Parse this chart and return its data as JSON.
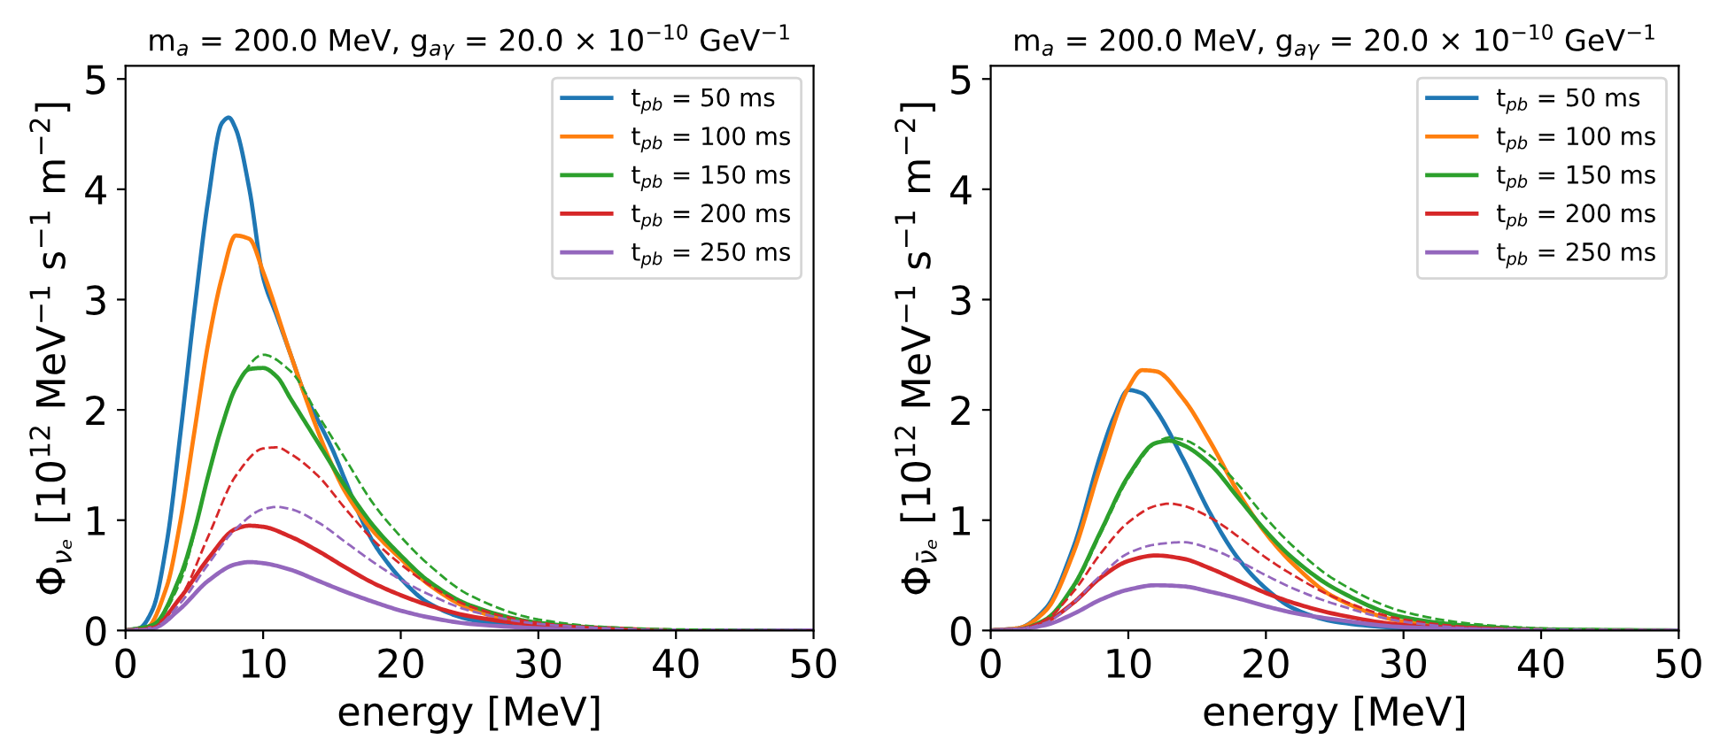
{
  "chart_data": [
    {
      "type": "line",
      "title": "m$_{a}$ = 200.0 MeV, g$_{aγ}$ = 20.0 × 10$^{−10}$ GeV$^{−1}$",
      "xlabel": "energy [MeV]",
      "ylabel": "Φ$_{νₑ}$ [10$^{12}$ MeV$^{−1}$ s$^{−1}$ m$^{−2}$]",
      "xlim": [
        0,
        50
      ],
      "ylim": [
        0,
        5.12
      ],
      "xticks": [
        0,
        10,
        20,
        30,
        40,
        50
      ],
      "yticks": [
        0,
        1,
        2,
        3,
        4,
        5
      ],
      "legend": "top right",
      "grid": false,
      "marker": "none",
      "series": [
        {
          "name": "t$_{pb}$ = 50 ms",
          "color": "#1f77b4",
          "line_style": "solid",
          "x": [
            0,
            1,
            2,
            3,
            4,
            5,
            6,
            7,
            7.5,
            8,
            9,
            10,
            11,
            12,
            13,
            14,
            15,
            16,
            17,
            18,
            19,
            20,
            22,
            25,
            30,
            35,
            50
          ],
          "values": [
            0,
            0.02,
            0.2,
            0.8,
            1.8,
            2.9,
            3.9,
            4.6,
            4.65,
            4.55,
            4.0,
            3.2,
            2.85,
            2.5,
            2.15,
            1.9,
            1.65,
            1.35,
            1.05,
            0.8,
            0.62,
            0.47,
            0.25,
            0.1,
            0.02,
            0,
            0
          ]
        },
        {
          "name": "t$_{pb}$ = 100 ms",
          "color": "#ff7f0e",
          "line_style": "solid",
          "x": [
            0,
            1.5,
            3,
            4,
            5,
            6,
            7,
            8,
            9,
            10,
            12,
            14,
            15,
            16,
            18,
            20,
            22,
            25,
            30,
            35
          ],
          "values": [
            0,
            0.02,
            0.4,
            1.0,
            1.8,
            2.6,
            3.2,
            3.58,
            3.55,
            3.25,
            2.5,
            1.8,
            1.5,
            1.25,
            0.9,
            0.65,
            0.42,
            0.2,
            0.04,
            0.01
          ]
        },
        {
          "name": "t$_{pb}$ = 150 ms",
          "color": "#2ca02c",
          "line_style": "solid",
          "x": [
            0,
            2,
            4,
            5,
            6,
            7,
            8,
            9,
            10,
            11,
            12,
            14,
            16,
            18,
            20,
            22,
            25,
            30,
            35,
            40,
            50
          ],
          "values": [
            0,
            0.05,
            0.5,
            0.9,
            1.4,
            1.85,
            2.2,
            2.37,
            2.38,
            2.3,
            2.1,
            1.7,
            1.3,
            0.95,
            0.68,
            0.45,
            0.23,
            0.07,
            0.02,
            0,
            0
          ]
        },
        {
          "name": "t$_{pb}$ = 200 ms",
          "color": "#d62728",
          "line_style": "solid",
          "x": [
            0,
            2,
            4,
            6,
            8,
            9,
            10,
            12,
            14,
            16,
            18,
            20,
            22,
            25,
            30,
            35,
            40,
            50
          ],
          "values": [
            0,
            0.03,
            0.3,
            0.65,
            0.92,
            0.95,
            0.94,
            0.85,
            0.72,
            0.57,
            0.43,
            0.32,
            0.23,
            0.13,
            0.05,
            0.02,
            0,
            0
          ]
        },
        {
          "name": "t$_{pb}$ = 250 ms",
          "color": "#9467bd",
          "line_style": "solid",
          "x": [
            0,
            2,
            4,
            6,
            8,
            9,
            10,
            12,
            14,
            16,
            18,
            20,
            22,
            25,
            30,
            35,
            50
          ],
          "values": [
            0,
            0.02,
            0.2,
            0.45,
            0.6,
            0.62,
            0.61,
            0.55,
            0.45,
            0.35,
            0.26,
            0.18,
            0.12,
            0.06,
            0.02,
            0,
            0
          ]
        },
        {
          "color": "#2ca02c",
          "line_style": "dashed",
          "x": [
            0,
            2,
            4,
            6,
            8,
            10,
            12,
            14,
            16,
            18,
            20,
            22,
            25,
            30,
            35,
            40,
            50
          ],
          "values": [
            0,
            0.05,
            0.45,
            1.4,
            2.2,
            2.5,
            2.35,
            1.95,
            1.55,
            1.15,
            0.85,
            0.6,
            0.32,
            0.1,
            0.03,
            0.01,
            0
          ]
        },
        {
          "color": "#d62728",
          "line_style": "dashed",
          "x": [
            0,
            2,
            4,
            6,
            8,
            10,
            11,
            12,
            14,
            16,
            18,
            20,
            22,
            25,
            30,
            35,
            40,
            50
          ],
          "values": [
            0,
            0.03,
            0.3,
            0.85,
            1.4,
            1.65,
            1.66,
            1.6,
            1.4,
            1.1,
            0.82,
            0.6,
            0.42,
            0.22,
            0.07,
            0.02,
            0,
            0
          ]
        },
        {
          "color": "#9467bd",
          "line_style": "dashed",
          "x": [
            0,
            2,
            4,
            6,
            8,
            10,
            11,
            12,
            14,
            16,
            18,
            20,
            22,
            25,
            30,
            35,
            40,
            50
          ],
          "values": [
            0,
            0.02,
            0.25,
            0.6,
            0.92,
            1.1,
            1.12,
            1.1,
            0.98,
            0.8,
            0.62,
            0.46,
            0.33,
            0.18,
            0.06,
            0.02,
            0,
            0
          ]
        }
      ]
    },
    {
      "type": "line",
      "title": "m$_{a}$ = 200.0 MeV, g$_{aγ}$ = 20.0 × 10$^{−10}$ GeV$^{−1}$",
      "xlabel": "energy [MeV]",
      "ylabel": "Φ$_{ν̄ₑ}$ [10$^{12}$ MeV$^{−1}$ s$^{−1}$ m$^{−2}$]",
      "xlim": [
        0,
        50
      ],
      "ylim": [
        0,
        5.12
      ],
      "xticks": [
        0,
        10,
        20,
        30,
        40,
        50
      ],
      "yticks": [
        0,
        1,
        2,
        3,
        4,
        5
      ],
      "legend": "top right",
      "grid": false,
      "marker": "none",
      "series": [
        {
          "name": "t$_{pb}$ = 50 ms",
          "color": "#1f77b4",
          "line_style": "solid",
          "x": [
            0,
            2,
            4,
            6,
            8,
            9,
            10,
            11,
            12,
            14,
            16,
            18,
            20,
            22,
            25,
            30,
            35,
            50
          ],
          "values": [
            0,
            0.02,
            0.2,
            0.75,
            1.6,
            1.95,
            2.18,
            2.15,
            2.0,
            1.55,
            1.05,
            0.65,
            0.38,
            0.2,
            0.08,
            0.02,
            0,
            0
          ]
        },
        {
          "name": "t$_{pb}$ = 100 ms",
          "color": "#ff7f0e",
          "line_style": "solid",
          "x": [
            0,
            2,
            4,
            6,
            8,
            10,
            11,
            12,
            14,
            16,
            18,
            20,
            22,
            25,
            30,
            35
          ],
          "values": [
            0,
            0.02,
            0.18,
            0.7,
            1.5,
            2.2,
            2.36,
            2.35,
            2.1,
            1.7,
            1.25,
            0.88,
            0.6,
            0.3,
            0.08,
            0.02
          ]
        },
        {
          "name": "t$_{pb}$ = 150 ms",
          "color": "#2ca02c",
          "line_style": "solid",
          "x": [
            0,
            2,
            4,
            6,
            8,
            10,
            12,
            13,
            14,
            16,
            18,
            20,
            22,
            25,
            30,
            35,
            40,
            50
          ],
          "values": [
            0,
            0.01,
            0.1,
            0.4,
            0.9,
            1.4,
            1.7,
            1.72,
            1.68,
            1.5,
            1.2,
            0.9,
            0.65,
            0.38,
            0.12,
            0.04,
            0.01,
            0
          ]
        },
        {
          "name": "t$_{pb}$ = 200 ms",
          "color": "#d62728",
          "line_style": "solid",
          "x": [
            0,
            2,
            4,
            6,
            8,
            10,
            12,
            14,
            16,
            18,
            20,
            22,
            25,
            30,
            35,
            40,
            50
          ],
          "values": [
            0,
            0.01,
            0.08,
            0.25,
            0.48,
            0.63,
            0.68,
            0.65,
            0.56,
            0.45,
            0.34,
            0.25,
            0.15,
            0.05,
            0.02,
            0,
            0
          ]
        },
        {
          "name": "t$_{pb}$ = 250 ms",
          "color": "#9467bd",
          "line_style": "solid",
          "x": [
            0,
            2,
            4,
            6,
            8,
            10,
            12,
            14,
            16,
            18,
            20,
            22,
            25,
            30,
            35,
            40,
            50
          ],
          "values": [
            0,
            0.01,
            0.05,
            0.15,
            0.28,
            0.37,
            0.41,
            0.4,
            0.35,
            0.29,
            0.22,
            0.16,
            0.1,
            0.03,
            0.01,
            0,
            0
          ]
        },
        {
          "color": "#2ca02c",
          "line_style": "dashed",
          "x": [
            0,
            2,
            4,
            6,
            8,
            10,
            12,
            13,
            14,
            16,
            18,
            20,
            22,
            25,
            30,
            35,
            40,
            50
          ],
          "values": [
            0,
            0.01,
            0.1,
            0.38,
            0.88,
            1.38,
            1.7,
            1.75,
            1.73,
            1.58,
            1.32,
            1.02,
            0.76,
            0.46,
            0.17,
            0.06,
            0.02,
            0
          ]
        },
        {
          "color": "#d62728",
          "line_style": "dashed",
          "x": [
            0,
            2,
            4,
            6,
            8,
            10,
            12,
            13,
            14,
            16,
            18,
            20,
            22,
            25,
            30,
            35,
            40,
            50
          ],
          "values": [
            0,
            0.01,
            0.1,
            0.35,
            0.7,
            0.98,
            1.13,
            1.15,
            1.13,
            1.02,
            0.85,
            0.66,
            0.5,
            0.3,
            0.1,
            0.03,
            0.01,
            0
          ]
        },
        {
          "color": "#9467bd",
          "line_style": "dashed",
          "x": [
            0,
            2,
            4,
            6,
            8,
            10,
            12,
            14,
            16,
            18,
            20,
            22,
            25,
            30,
            35,
            40,
            50
          ],
          "values": [
            0,
            0.01,
            0.07,
            0.25,
            0.5,
            0.7,
            0.78,
            0.8,
            0.74,
            0.63,
            0.5,
            0.38,
            0.24,
            0.08,
            0.02,
            0.01,
            0
          ]
        }
      ]
    }
  ]
}
